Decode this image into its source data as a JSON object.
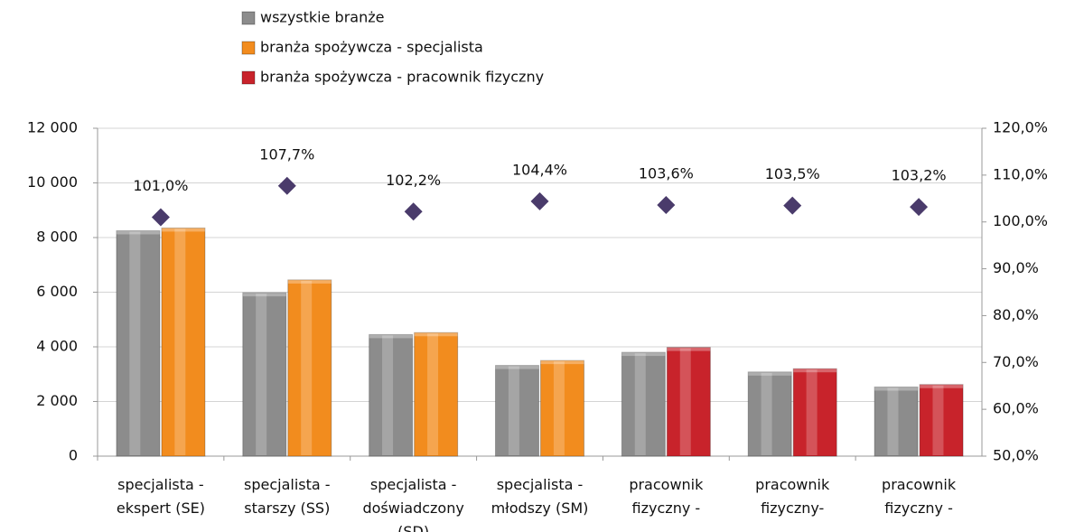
{
  "chart_data": {
    "type": "bar",
    "categories": [
      "specjalista -\nekspert (SE)",
      "specjalista -\nstarszy (SS)",
      "specjalista -\ndoświadczony\n(SD)",
      "specjalista -\nmłodszy (SM)",
      "pracownik\nfizyczny -",
      "pracownik\nfizyczny-",
      "pracownik\nfizyczny -"
    ],
    "series": [
      {
        "name": "wszystkie branże",
        "color": "#8c8c8c",
        "values": [
          8250,
          5980,
          4450,
          3320,
          3800,
          3080,
          2530
        ]
      },
      {
        "name": "branża spożywcza - specjalista",
        "color": "#f28c1e",
        "values": [
          8350,
          6450,
          4520,
          3500,
          null,
          null,
          null
        ]
      },
      {
        "name": "branża spożywcza - pracownik fizyczny",
        "color": "#c8232b",
        "values": [
          null,
          null,
          null,
          null,
          3980,
          3200,
          2620
        ]
      },
      {
        "name": null,
        "type": "scatter",
        "axis": "y2",
        "color": "#4a3b6b",
        "values": [
          101.0,
          107.7,
          102.2,
          104.4,
          103.6,
          103.5,
          103.2
        ],
        "value_labels": [
          "101,0%",
          "107,7%",
          "102,2%",
          "104,4%",
          "103,6%",
          "103,5%",
          "103,2%"
        ]
      }
    ],
    "ylim": [
      0,
      12000
    ],
    "yticks": [
      {
        "value": 0,
        "label": "0"
      },
      {
        "value": 2000,
        "label": "2 000"
      },
      {
        "value": 4000,
        "label": "4 000"
      },
      {
        "value": 6000,
        "label": "6 000"
      },
      {
        "value": 8000,
        "label": "8 000"
      },
      {
        "value": 10000,
        "label": "10 000"
      },
      {
        "value": 12000,
        "label": "12 000"
      }
    ],
    "y2lim": [
      50,
      120
    ],
    "y2ticks": [
      {
        "value": 50,
        "label": "50,0%"
      },
      {
        "value": 60,
        "label": "60,0%"
      },
      {
        "value": 70,
        "label": "70,0%"
      },
      {
        "value": 80,
        "label": "80,0%"
      },
      {
        "value": 90,
        "label": "90,0%"
      },
      {
        "value": 100,
        "label": "100,0%"
      },
      {
        "value": 110,
        "label": "110,0%"
      },
      {
        "value": 120,
        "label": "120,0%"
      }
    ],
    "grid": true
  }
}
